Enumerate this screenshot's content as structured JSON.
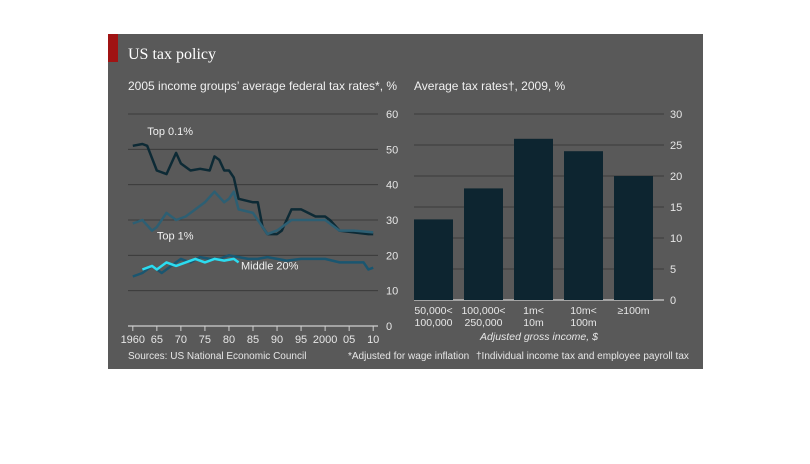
{
  "header": {
    "title": "US tax policy"
  },
  "footer": {
    "sources": "Sources: US National Economic Council",
    "note_wage": "*Adjusted for wage inflation",
    "note_tax": "†Individual income tax and employee payroll tax"
  },
  "chart_data": [
    {
      "type": "line",
      "title": "2005 income groups’ average federal tax rates*, %",
      "xlabel": "",
      "ylabel": "",
      "xlim": [
        1959,
        2011
      ],
      "ylim": [
        0,
        60
      ],
      "yticks": [
        0,
        10,
        20,
        30,
        40,
        50,
        60
      ],
      "xtick_labels": [
        {
          "x": 1960,
          "label": "1960"
        },
        {
          "x": 1965,
          "label": "65"
        },
        {
          "x": 1970,
          "label": "70"
        },
        {
          "x": 1975,
          "label": "75"
        },
        {
          "x": 1980,
          "label": "80"
        },
        {
          "x": 1985,
          "label": "85"
        },
        {
          "x": 1990,
          "label": "90"
        },
        {
          "x": 1995,
          "label": "95"
        },
        {
          "x": 2000,
          "label": "2000"
        },
        {
          "x": 2005,
          "label": "05"
        },
        {
          "x": 2010,
          "label": "10"
        }
      ],
      "grid": true,
      "series": [
        {
          "name": "Top 0.1%",
          "color": "#0d2a35",
          "x": [
            1960,
            1962,
            1963,
            1965,
            1967,
            1969,
            1970,
            1972,
            1974,
            1976,
            1977,
            1978,
            1979,
            1980,
            1981,
            1982,
            1985,
            1986,
            1987,
            1988,
            1990,
            1991,
            1993,
            1995,
            1998,
            2000,
            2001,
            2003,
            2006,
            2009,
            2010
          ],
          "y": [
            51,
            51.5,
            51,
            44,
            43,
            49,
            46,
            44,
            44.5,
            44,
            48,
            47,
            44,
            44,
            42,
            36,
            35,
            35,
            28,
            26,
            26,
            27,
            33,
            33,
            31,
            31,
            30,
            27,
            26.5,
            26,
            26
          ]
        },
        {
          "name": "Top 1%",
          "color": "#2d5f73",
          "x": [
            1960,
            1962,
            1964,
            1965,
            1967,
            1969,
            1971,
            1973,
            1975,
            1977,
            1979,
            1980,
            1981,
            1982,
            1985,
            1987,
            1988,
            1990,
            1993,
            1995,
            1998,
            2000,
            2001,
            2003,
            2006,
            2010
          ],
          "y": [
            29,
            30,
            27,
            28,
            32,
            30,
            31,
            33,
            35,
            38,
            35,
            36,
            38,
            33,
            32,
            28,
            26,
            27,
            30,
            30,
            30,
            30,
            29,
            27,
            27,
            26.5
          ]
        },
        {
          "name": "Middle 20%",
          "color": "#1a5670",
          "x": [
            1960,
            1962,
            1964,
            1966,
            1968,
            1970,
            1972,
            1974,
            1976,
            1978,
            1980,
            1982,
            1984,
            1986,
            1988,
            1990,
            1992,
            1995,
            2000,
            2003,
            2006,
            2008,
            2009,
            2010
          ],
          "y": [
            14,
            15,
            17,
            15,
            17,
            19,
            18,
            19.5,
            19,
            19,
            20,
            19.5,
            19,
            19,
            19.5,
            19,
            18.5,
            19,
            19,
            18,
            18,
            18,
            16,
            16.5
          ]
        },
        {
          "name": "",
          "color": "#2bdcf0",
          "x": [
            1962,
            1964,
            1965,
            1967,
            1969,
            1971,
            1973,
            1975,
            1977,
            1979,
            1981,
            1982
          ],
          "y": [
            16,
            17,
            16,
            18,
            17,
            18,
            19,
            18,
            19,
            18.5,
            19,
            18
          ]
        }
      ],
      "annotations": [
        {
          "text": "Top 0.1%",
          "x": 1963,
          "y": 54
        },
        {
          "text": "Top 1%",
          "x": 1965,
          "y": 24.5
        },
        {
          "text": "Middle 20%",
          "x": 1982.5,
          "y": 16
        }
      ]
    },
    {
      "type": "bar",
      "title": "Average tax rates†, 2009, %",
      "xlabel": "Adjusted gross income, $",
      "ylabel": "",
      "ylim": [
        0,
        30
      ],
      "yticks": [
        0,
        5,
        10,
        15,
        20,
        25,
        30
      ],
      "grid": true,
      "categories": [
        [
          "50,000<",
          "100,000"
        ],
        [
          "100,000<",
          "250,000"
        ],
        [
          "1m<",
          "10m"
        ],
        [
          "10m<",
          "100m"
        ],
        [
          "≥100m"
        ]
      ],
      "values": [
        13,
        18,
        26,
        24,
        20
      ],
      "color": "#0d2530"
    }
  ]
}
